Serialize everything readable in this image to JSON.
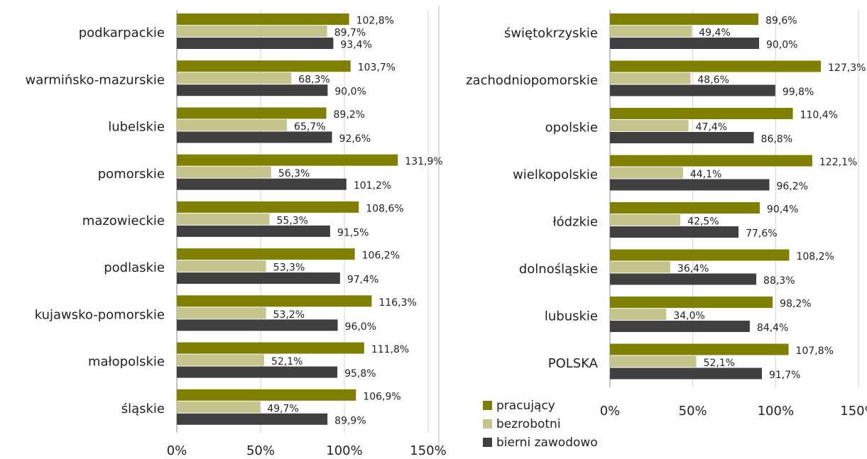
{
  "chart_data": [
    {
      "type": "bar",
      "orientation": "horizontal",
      "categories": [
        "podkarpackie",
        "warmińsko-mazurskie",
        "lubelskie",
        "pomorskie",
        "mazowieckie",
        "podlaskie",
        "kujawsko-pomorskie",
        "małopolskie",
        "śląskie"
      ],
      "series": [
        {
          "color": "#808000",
          "values": [
            102.8,
            103.7,
            89.2,
            131.9,
            108.6,
            106.2,
            116.3,
            111.8,
            106.9
          ],
          "value_labels": [
            "102,8%",
            "103,7%",
            "89,2%",
            "131,9%",
            "108,6%",
            "106,2%",
            "116,3%",
            "111,8%",
            "106,9%"
          ]
        },
        {
          "color": "#c4c48c",
          "values": [
            89.7,
            68.3,
            65.7,
            56.3,
            55.3,
            53.3,
            53.2,
            52.1,
            49.7
          ],
          "value_labels": [
            "89,7%",
            "68,3%",
            "65,7%",
            "56,3%",
            "55,3%",
            "53,3%",
            "53,2%",
            "52,1%",
            "49,7%"
          ]
        },
        {
          "color": "#404040",
          "values": [
            93.4,
            90.0,
            92.6,
            101.2,
            91.5,
            97.4,
            96.0,
            95.8,
            89.9
          ],
          "value_labels": [
            "93,4%",
            "90,0%",
            "92,6%",
            "101,2%",
            "91,5%",
            "97,4%",
            "96,0%",
            "95,8%",
            "89,9%"
          ]
        }
      ],
      "xlim": [
        0,
        150
      ],
      "xticks": [
        {
          "value": 0,
          "label": "0%"
        },
        {
          "value": 50,
          "label": "50%"
        },
        {
          "value": 100,
          "label": "100%"
        },
        {
          "value": 150,
          "label": "150%"
        }
      ],
      "grid": true
    },
    {
      "type": "bar",
      "orientation": "horizontal",
      "categories": [
        "świętokrzyskie",
        "zachodniopomorskie",
        "opolskie",
        "wielkopolskie",
        "łódzkie",
        "dolnośląskie",
        "lubuskie",
        "POLSKA"
      ],
      "series": [
        {
          "name": "pracujący",
          "color": "#808000",
          "values": [
            89.6,
            127.3,
            110.4,
            122.1,
            90.4,
            108.2,
            98.2,
            107.8
          ],
          "value_labels": [
            "89,6%",
            "127,3%",
            "110,4%",
            "122,1%",
            "90,4%",
            "108,2%",
            "98,2%",
            "107,8%"
          ]
        },
        {
          "name": "bezrobotni",
          "color": "#c4c48c",
          "values": [
            49.4,
            48.6,
            47.4,
            44.1,
            42.5,
            36.4,
            34.0,
            52.1
          ],
          "value_labels": [
            "49,4%",
            "48,6%",
            "47,4%",
            "44,1%",
            "42,5%",
            "36,4%",
            "34,0%",
            "52,1%"
          ]
        },
        {
          "name": "bierni zawodowo",
          "color": "#404040",
          "values": [
            90.0,
            99.8,
            86.8,
            96.2,
            77.6,
            88.3,
            84.4,
            91.7
          ],
          "value_labels": [
            "90,0%",
            "99,8%",
            "86,8%",
            "96,2%",
            "77,6%",
            "88,3%",
            "84,4%",
            "91,7%"
          ]
        }
      ],
      "xlim": [
        0,
        150
      ],
      "xticks": [
        {
          "value": 0,
          "label": "0%"
        },
        {
          "value": 50,
          "label": "50%"
        },
        {
          "value": 100,
          "label": "100%"
        },
        {
          "value": 150,
          "label": "150%"
        }
      ],
      "grid": true,
      "legend": "outside lower left"
    }
  ]
}
